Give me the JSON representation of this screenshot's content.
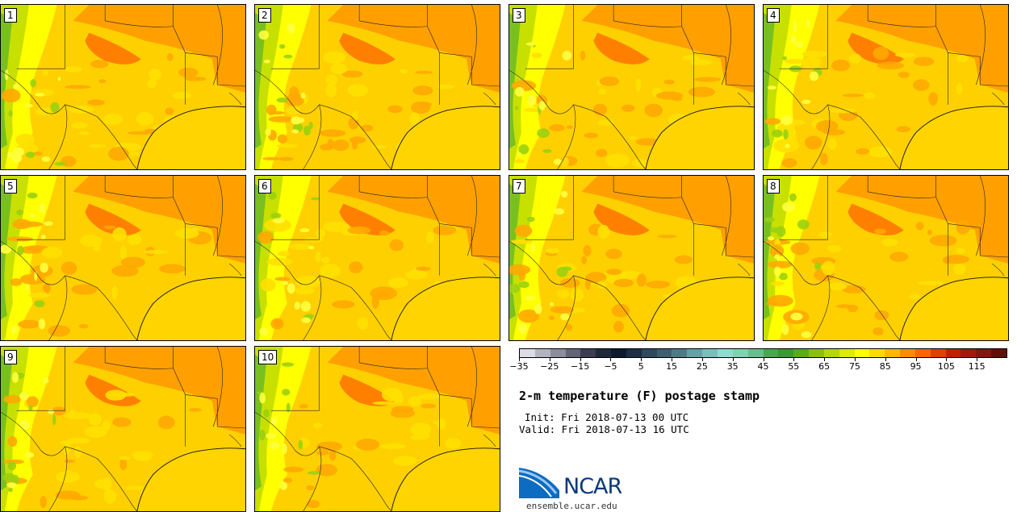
{
  "panels": [
    {
      "label": "1"
    },
    {
      "label": "2"
    },
    {
      "label": "3"
    },
    {
      "label": "4"
    },
    {
      "label": "5"
    },
    {
      "label": "6"
    },
    {
      "label": "7"
    },
    {
      "label": "8"
    },
    {
      "label": "9"
    },
    {
      "label": "10"
    }
  ],
  "colorbar": {
    "colors": [
      "#dcdce6",
      "#b4b4c0",
      "#8c8c9c",
      "#646478",
      "#3c3c52",
      "#1e2a3c",
      "#0c1a30",
      "#1c2e46",
      "#2e4a5e",
      "#3e6070",
      "#4e7a86",
      "#66a0a8",
      "#7cbebe",
      "#90dcd0",
      "#7ed4b0",
      "#66c08c",
      "#4aa650",
      "#389a34",
      "#5aaa1c",
      "#8ac010",
      "#b4d80a",
      "#dcec06",
      "#ffff00",
      "#ffdc00",
      "#ffb800",
      "#ff8c00",
      "#ff6400",
      "#e04000",
      "#c02000",
      "#a01a10",
      "#801810",
      "#601008"
    ],
    "tick_labels": [
      "−35",
      "−25",
      "−15",
      "−5",
      "5",
      "15",
      "25",
      "35",
      "45",
      "55",
      "65",
      "75",
      "85",
      "95",
      "105",
      "115"
    ]
  },
  "title": "2-m temperature (F) postage stamp",
  "init": "Init: Fri 2018-07-13 00 UTC",
  "valid": "Valid: Fri 2018-07-13 16 UTC",
  "logo": {
    "text": "NCAR",
    "site": "ensemble.ucar.edu"
  }
}
